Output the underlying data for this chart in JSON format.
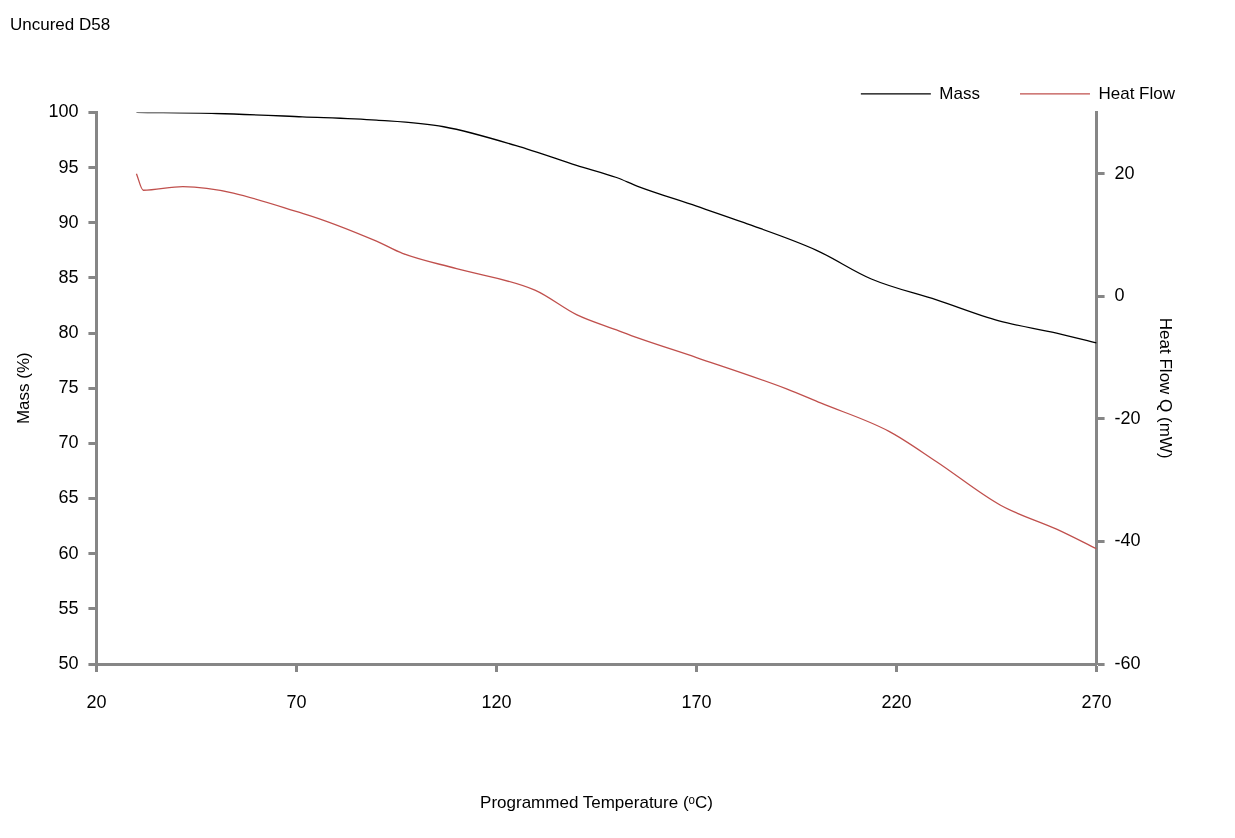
{
  "chart_data": {
    "type": "line",
    "title": "Uncured D58",
    "xlabel": "Programmed Temperature (ᵒC)",
    "ylabel": "Mass (%)",
    "y2label": "Heat Flow Q (mW)",
    "xlim": [
      20,
      270
    ],
    "xticks": [
      20,
      70,
      120,
      170,
      220,
      270
    ],
    "ylim": [
      50,
      100
    ],
    "yticks": [
      50,
      55,
      60,
      65,
      70,
      75,
      80,
      85,
      90,
      95,
      100
    ],
    "y2lim": [
      -60,
      30
    ],
    "y2ticks": [
      -60,
      -40,
      -20,
      0,
      20
    ],
    "grid": false,
    "legend": "top right",
    "marker": "none",
    "line_style": "solid",
    "series": [
      {
        "name": "Mass",
        "color": "#000000",
        "x": [
          30,
          50,
          71.5,
          90,
          106.8,
          127.5,
          140,
          150,
          155.3,
          170,
          181.9,
          200,
          213.7,
          230,
          245.6,
          260,
          270
        ],
        "values": [
          100,
          99.9,
          99.6,
          99.3,
          98.7,
          96.7,
          95.2,
          94.1,
          93.3,
          91.5,
          90.0,
          87.5,
          84.9,
          83,
          81.1,
          80,
          79.1
        ]
      },
      {
        "name": "Heat Flow",
        "color": "#c0504d",
        "axis": "y2",
        "x": [
          30,
          31.7,
          41.6,
          71.7,
          90,
          96.5,
          110,
          129.6,
          140,
          150,
          155.3,
          170,
          192.5,
          201,
          218,
          230,
          246,
          260,
          270
        ],
        "values": [
          20.0,
          17.3,
          17.9,
          13.5,
          9,
          7.0,
          4.5,
          1.0,
          -3,
          -5.5,
          -6.8,
          -10,
          -15.1,
          -17.4,
          -22.0,
          -27,
          -34.1,
          -38,
          -41.2
        ]
      }
    ]
  }
}
